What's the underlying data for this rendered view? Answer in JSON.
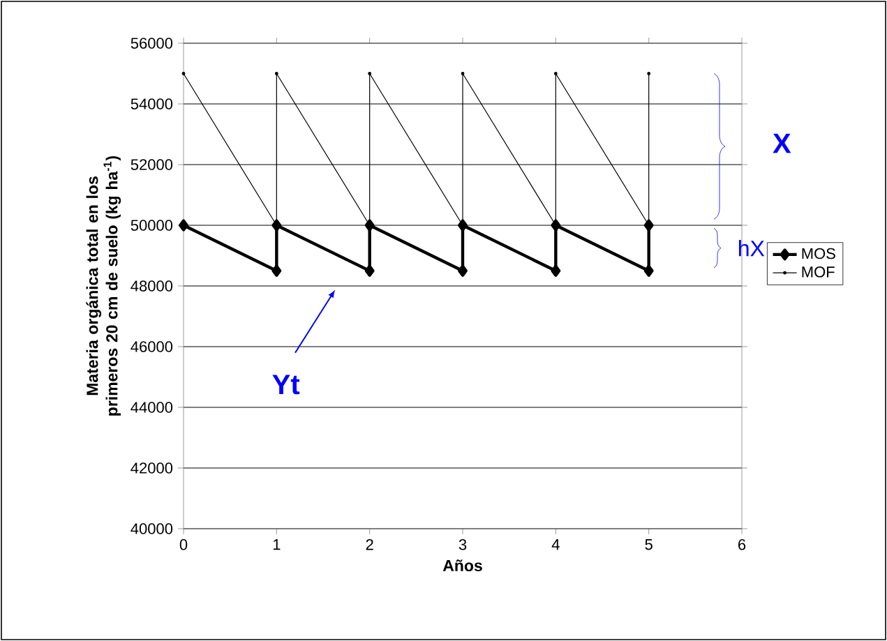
{
  "chart_data": {
    "type": "line",
    "xlabel": "Años",
    "ylabel": "Materia orgánica total en los primeros 20 cm de suelo (kg ha$^{-1}$)",
    "series": [
      {
        "name": "MOS",
        "color": "#000000",
        "marker": "diamond",
        "x": [
          0,
          1,
          1,
          2,
          2,
          3,
          3,
          4,
          4,
          5,
          5
        ],
        "values": [
          50000,
          48500,
          50000,
          48500,
          50000,
          48500,
          50000,
          48500,
          50000,
          48500,
          50000
        ]
      },
      {
        "name": "MOF",
        "color": "#000000",
        "marker": "circle",
        "x": [
          0,
          1,
          1,
          2,
          2,
          3,
          3,
          4,
          4,
          5,
          5
        ],
        "values": [
          55000,
          50000,
          55000,
          50000,
          55000,
          50000,
          55000,
          50000,
          55000,
          50000,
          55000
        ]
      }
    ],
    "xlim": [
      0,
      6
    ],
    "ylim": [
      40000,
      56000
    ],
    "xticks": [
      0,
      1,
      2,
      3,
      4,
      5,
      6
    ],
    "yticks": [
      40000,
      42000,
      44000,
      46000,
      48000,
      50000,
      52000,
      54000,
      56000
    ],
    "grid": "y",
    "legend": "right",
    "line_style": "solid",
    "annotations": [
      "X",
      "hX",
      "Yt"
    ]
  }
}
